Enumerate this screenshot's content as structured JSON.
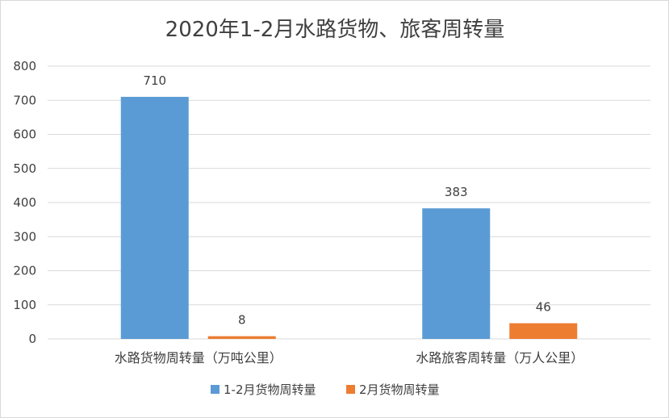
{
  "chart_data": {
    "type": "bar",
    "title": "2020年1-2月水路货物、旅客周转量",
    "categories": [
      "水路货物周转量（万吨公里）",
      "水路旅客周转量（万人公里）"
    ],
    "series": [
      {
        "name": "1-2月货物周转量",
        "values": [
          710,
          383
        ],
        "color": "#5b9bd5"
      },
      {
        "name": "2月货物周转量",
        "values": [
          8,
          46
        ],
        "color": "#ed7d31"
      }
    ],
    "ylim": [
      0,
      800
    ],
    "yticks": [
      0,
      100,
      200,
      300,
      400,
      500,
      600,
      700,
      800
    ],
    "xlabel": "",
    "ylabel": "",
    "grid": true,
    "legend": "bottom",
    "data_labels": true
  }
}
